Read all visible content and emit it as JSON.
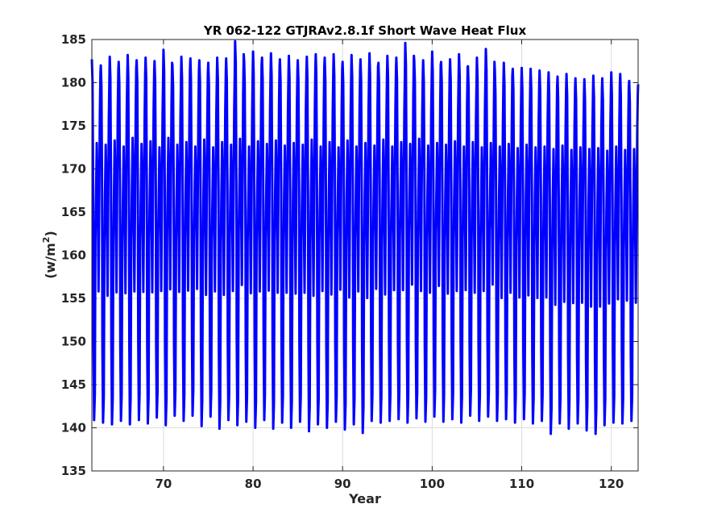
{
  "chart_data": {
    "type": "line",
    "title": "YR 062-122 GTJRAv2.8.1f Short Wave Heat Flux",
    "xlabel": "Year",
    "ylabel_prefix": "(w/m",
    "ylabel_sup": "2",
    "ylabel_suffix": ")",
    "xlim": [
      62,
      123
    ],
    "ylim": [
      135,
      185
    ],
    "xticks": [
      70,
      80,
      90,
      100,
      110,
      120
    ],
    "yticks": [
      135,
      140,
      145,
      150,
      155,
      160,
      165,
      170,
      175,
      180,
      185
    ],
    "grid": true,
    "series": [
      {
        "color": "#0000ff",
        "cycle_start": 62,
        "cycle_length_years": 1,
        "annual_max": [
          182.7,
          182.0,
          183.0,
          182.4,
          183.2,
          182.6,
          182.9,
          182.5,
          183.8,
          182.1,
          183.0,
          182.8,
          182.6,
          182.3,
          182.9,
          182.8,
          184.8,
          182.5,
          183.6,
          182.9,
          183.4,
          182.7,
          183.1,
          182.6,
          183.0,
          183.3,
          182.9,
          183.3,
          182.4,
          183.2,
          182.7,
          183.4,
          182.3,
          183.1,
          182.9,
          184.6,
          182.6,
          182.6,
          183.6,
          182.4,
          182.7,
          183.3,
          181.9,
          182.9,
          183.9,
          181.3,
          182.3,
          181.6,
          181.7,
          181.6,
          181.4,
          181.2,
          180.7,
          181.0,
          180.5,
          180.4,
          180.8,
          180.5,
          181.2,
          181.0,
          180.2
        ],
        "annual_min": [
          140.9,
          140.6,
          140.4,
          140.8,
          140.4,
          140.9,
          140.5,
          141.2,
          140.3,
          141.4,
          140.8,
          141.4,
          140.2,
          141.3,
          139.9,
          140.9,
          140.3,
          140.7,
          140.0,
          140.9,
          139.9,
          140.6,
          140.0,
          140.7,
          139.6,
          140.4,
          140.0,
          140.7,
          139.8,
          140.4,
          139.4,
          140.8,
          140.6,
          140.8,
          141.0,
          140.6,
          141.1,
          140.7,
          141.3,
          140.7,
          141.0,
          140.6,
          141.4,
          140.8,
          141.3,
          140.8,
          141.0,
          140.6,
          141.0,
          140.5,
          140.8,
          139.3,
          140.5,
          139.9,
          140.5,
          139.7,
          139.3,
          140.3,
          140.6,
          140.5,
          140.8
        ],
        "secondary_peak": [
          173.0,
          172.8,
          173.3,
          172.6,
          173.6,
          172.9,
          173.2,
          172.5,
          173.6,
          172.8,
          173.1,
          172.6,
          173.4,
          172.5,
          173.1,
          172.8,
          173.5,
          172.6,
          173.2,
          172.9,
          173.3,
          172.7,
          173.0,
          172.8,
          173.4,
          172.6,
          173.1,
          172.5,
          173.3,
          172.6,
          173.0,
          172.7,
          173.4,
          172.6,
          173.1,
          172.9,
          173.5,
          172.7,
          173.0,
          172.8,
          173.2,
          172.6,
          173.1,
          172.5,
          173.0,
          172.6,
          172.9,
          172.4,
          172.8,
          172.5,
          172.6,
          172.3,
          172.7,
          172.2,
          172.5,
          172.3,
          172.4,
          172.1,
          172.6,
          172.2,
          172.3
        ],
        "end_value": 179.8
      }
    ]
  }
}
